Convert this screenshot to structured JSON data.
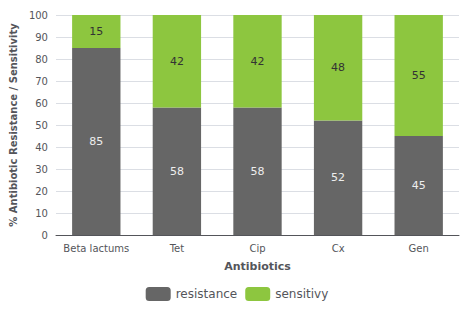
{
  "chart_data": {
    "type": "bar",
    "stacked": true,
    "categories": [
      "Beta lactums",
      "Tet",
      "Cip",
      "Cx",
      "Gen"
    ],
    "series": [
      {
        "name": "resistance",
        "color": "#666666",
        "values": [
          85,
          58,
          58,
          52,
          45
        ]
      },
      {
        "name": "sensitivy",
        "color": "#8dc63f",
        "values": [
          15,
          42,
          42,
          48,
          55
        ]
      }
    ],
    "xlabel": "Antibiotics",
    "ylabel": "% Antibiotic Resistance / Sensitivity",
    "ylim": [
      0,
      100
    ],
    "yticks": [
      0,
      10,
      20,
      30,
      40,
      50,
      60,
      70,
      80,
      90,
      100
    ],
    "grid": true,
    "data_labels": true,
    "legend": "bottom"
  }
}
